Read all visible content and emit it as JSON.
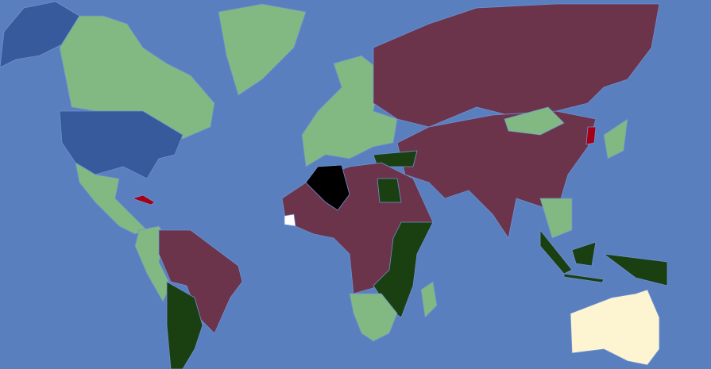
{
  "map": {
    "type": "choropleth world map",
    "labels_shown": false,
    "colors": {
      "ocean": "#5a7fbf",
      "light_green": "#82b982",
      "maroon": "#6b344b",
      "dark_green": "#1a4012",
      "blue": "#375a9c",
      "black": "#000000",
      "red": "#a50016",
      "cream": "#fdf5d2",
      "white": "#ffffff"
    }
  }
}
